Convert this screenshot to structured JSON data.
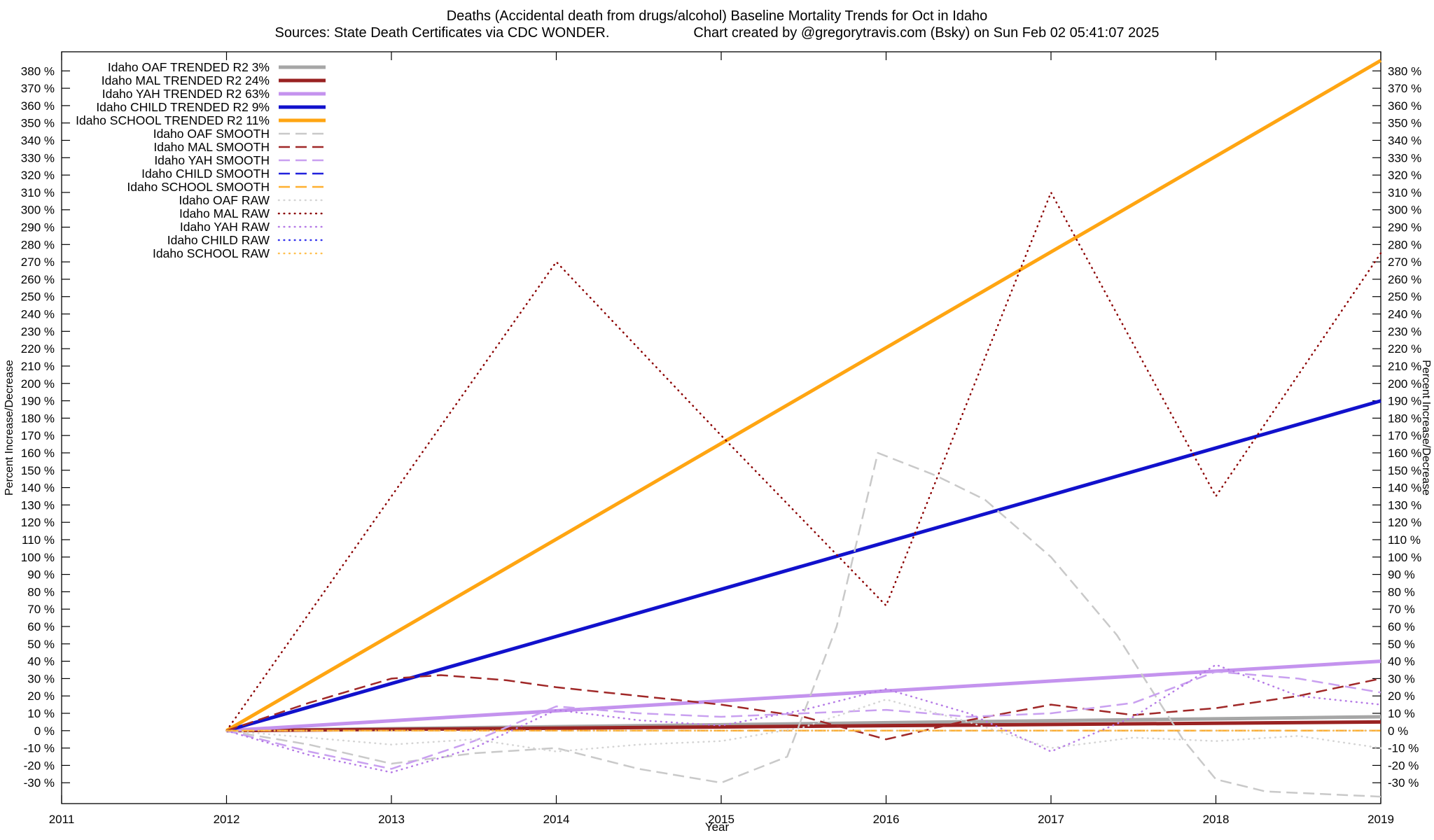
{
  "header": {
    "title": "Deaths (Accidental death from drugs/alcohol)  Baseline Mortality Trends for Oct in Idaho",
    "sources": "Sources: State Death Certificates via CDC WONDER.",
    "credit": "Chart created by @gregorytravis.com (Bsky) on Sun Feb 02 05:41:07 2025"
  },
  "chart_data": {
    "type": "line",
    "title": "Deaths (Accidental death from drugs/alcohol)  Baseline Mortality Trends for Oct in Idaho",
    "xlabel": "Year",
    "ylabel": "Percent Increase/Decrease",
    "xlim": [
      2011,
      2019
    ],
    "ylim": [
      -42,
      391
    ],
    "xticks": [
      2011,
      2012,
      2013,
      2014,
      2015,
      2016,
      2017,
      2018,
      2019
    ],
    "ytick_min": -30,
    "ytick_max": 380,
    "ytick_step": 10,
    "ytick_suffix": " %",
    "grid": false,
    "legend_position": "top-left",
    "series": [
      {
        "name": "oaf-trended",
        "label": "Idaho OAF TRENDED R2   3%",
        "color": "#a6a6a6",
        "style": "solid",
        "width": 5,
        "points": [
          [
            2012,
            0
          ],
          [
            2019,
            8
          ]
        ]
      },
      {
        "name": "mal-trended",
        "label": "Idaho MAL TRENDED R2  24%",
        "color": "#992222",
        "style": "solid",
        "width": 5,
        "points": [
          [
            2012,
            0
          ],
          [
            2019,
            5
          ]
        ]
      },
      {
        "name": "yah-trended",
        "label": "Idaho YAH TRENDED R2  63%",
        "color": "#c493ee",
        "style": "solid",
        "width": 5,
        "points": [
          [
            2012,
            0
          ],
          [
            2019,
            40
          ]
        ]
      },
      {
        "name": "child-trended",
        "label": "Idaho CHILD TRENDED R2   9%",
        "color": "#1111cc",
        "style": "solid",
        "width": 5,
        "points": [
          [
            2012,
            0
          ],
          [
            2019,
            190
          ]
        ]
      },
      {
        "name": "school-trended",
        "label": "Idaho SCHOOL TRENDED R2  11%",
        "color": "#ffa512",
        "style": "solid",
        "width": 5,
        "points": [
          [
            2012,
            0
          ],
          [
            2019,
            386
          ]
        ]
      },
      {
        "name": "oaf-smooth",
        "label": "Idaho OAF SMOOTH",
        "color": "#c9c9c9",
        "style": "dashed",
        "width": 2.5,
        "points": [
          [
            2012,
            0
          ],
          [
            2012.5,
            -8
          ],
          [
            2013,
            -19
          ],
          [
            2013.5,
            -13
          ],
          [
            2014,
            -10
          ],
          [
            2014.5,
            -22
          ],
          [
            2015,
            -30
          ],
          [
            2015.4,
            -15
          ],
          [
            2015.7,
            60
          ],
          [
            2015.95,
            160
          ],
          [
            2016.3,
            147
          ],
          [
            2016.6,
            133
          ],
          [
            2017,
            100
          ],
          [
            2017.4,
            55
          ],
          [
            2017.8,
            -5
          ],
          [
            2018,
            -28
          ],
          [
            2018.3,
            -35
          ],
          [
            2019,
            -38
          ]
        ]
      },
      {
        "name": "mal-smooth",
        "label": "Idaho MAL SMOOTH",
        "color": "#a02828",
        "style": "dashed",
        "width": 2.5,
        "points": [
          [
            2012,
            0
          ],
          [
            2012.5,
            16
          ],
          [
            2013,
            30
          ],
          [
            2013.3,
            32
          ],
          [
            2013.7,
            29
          ],
          [
            2014,
            25
          ],
          [
            2014.5,
            20
          ],
          [
            2015,
            15
          ],
          [
            2015.5,
            8
          ],
          [
            2016,
            -5
          ],
          [
            2016.5,
            6
          ],
          [
            2017,
            15
          ],
          [
            2017.5,
            9
          ],
          [
            2018,
            13
          ],
          [
            2018.5,
            20
          ],
          [
            2019,
            30
          ]
        ]
      },
      {
        "name": "yah-smooth",
        "label": "Idaho YAH SMOOTH",
        "color": "#c9a0f0",
        "style": "dashed",
        "width": 2.5,
        "points": [
          [
            2012,
            0
          ],
          [
            2012.5,
            -12
          ],
          [
            2013,
            -22
          ],
          [
            2013.5,
            -6
          ],
          [
            2014,
            14
          ],
          [
            2014.5,
            10
          ],
          [
            2015,
            8
          ],
          [
            2015.5,
            10
          ],
          [
            2016,
            12
          ],
          [
            2016.5,
            8
          ],
          [
            2017,
            10
          ],
          [
            2017.5,
            16
          ],
          [
            2018,
            34
          ],
          [
            2018.5,
            30
          ],
          [
            2019,
            22
          ]
        ]
      },
      {
        "name": "child-smooth",
        "label": "Idaho CHILD SMOOTH",
        "color": "#2222dd",
        "style": "dashed",
        "width": 2.5,
        "points": [
          [
            2012,
            0
          ],
          [
            2019,
            0
          ]
        ]
      },
      {
        "name": "school-smooth",
        "label": "Idaho SCHOOL SMOOTH",
        "color": "#ffb030",
        "style": "dashed",
        "width": 2.5,
        "points": [
          [
            2012,
            0
          ],
          [
            2019,
            0
          ]
        ]
      },
      {
        "name": "oaf-raw",
        "label": "Idaho OAF RAW",
        "color": "#d4d4d4",
        "style": "dotted",
        "width": 2.5,
        "points": [
          [
            2012,
            0
          ],
          [
            2012.5,
            -4
          ],
          [
            2013,
            -8
          ],
          [
            2013.5,
            -5
          ],
          [
            2014,
            -12
          ],
          [
            2014.5,
            -8
          ],
          [
            2015,
            -6
          ],
          [
            2015.5,
            2
          ],
          [
            2016,
            18
          ],
          [
            2016.5,
            5
          ],
          [
            2017,
            -10
          ],
          [
            2017.5,
            -4
          ],
          [
            2018,
            -6
          ],
          [
            2018.5,
            -3
          ],
          [
            2019,
            -10
          ]
        ]
      },
      {
        "name": "mal-raw",
        "label": "Idaho MAL RAW",
        "color": "#8b0000",
        "style": "dotted",
        "width": 2.5,
        "points": [
          [
            2012,
            0
          ],
          [
            2013,
            135
          ],
          [
            2014,
            270
          ],
          [
            2015,
            170
          ],
          [
            2016,
            72
          ],
          [
            2017,
            310
          ],
          [
            2018,
            135
          ],
          [
            2019,
            275
          ]
        ]
      },
      {
        "name": "yah-raw",
        "label": "Idaho YAH RAW",
        "color": "#b57ae6",
        "style": "dotted",
        "width": 2.5,
        "points": [
          [
            2012,
            0
          ],
          [
            2012.5,
            -14
          ],
          [
            2013,
            -24
          ],
          [
            2013.5,
            -10
          ],
          [
            2014,
            12
          ],
          [
            2014.5,
            6
          ],
          [
            2015,
            3
          ],
          [
            2015.5,
            12
          ],
          [
            2016,
            24
          ],
          [
            2016.5,
            10
          ],
          [
            2017,
            -12
          ],
          [
            2017.5,
            8
          ],
          [
            2018,
            38
          ],
          [
            2018.5,
            20
          ],
          [
            2019,
            15
          ]
        ]
      },
      {
        "name": "child-raw",
        "label": "Idaho CHILD RAW",
        "color": "#3333ee",
        "style": "dotted",
        "width": 2.5,
        "points": [
          [
            2012,
            0
          ],
          [
            2019,
            0
          ]
        ]
      },
      {
        "name": "school-raw",
        "label": "Idaho SCHOOL RAW",
        "color": "#ffc050",
        "style": "dotted",
        "width": 2.5,
        "points": [
          [
            2012,
            0
          ],
          [
            2019,
            0
          ]
        ]
      }
    ]
  }
}
